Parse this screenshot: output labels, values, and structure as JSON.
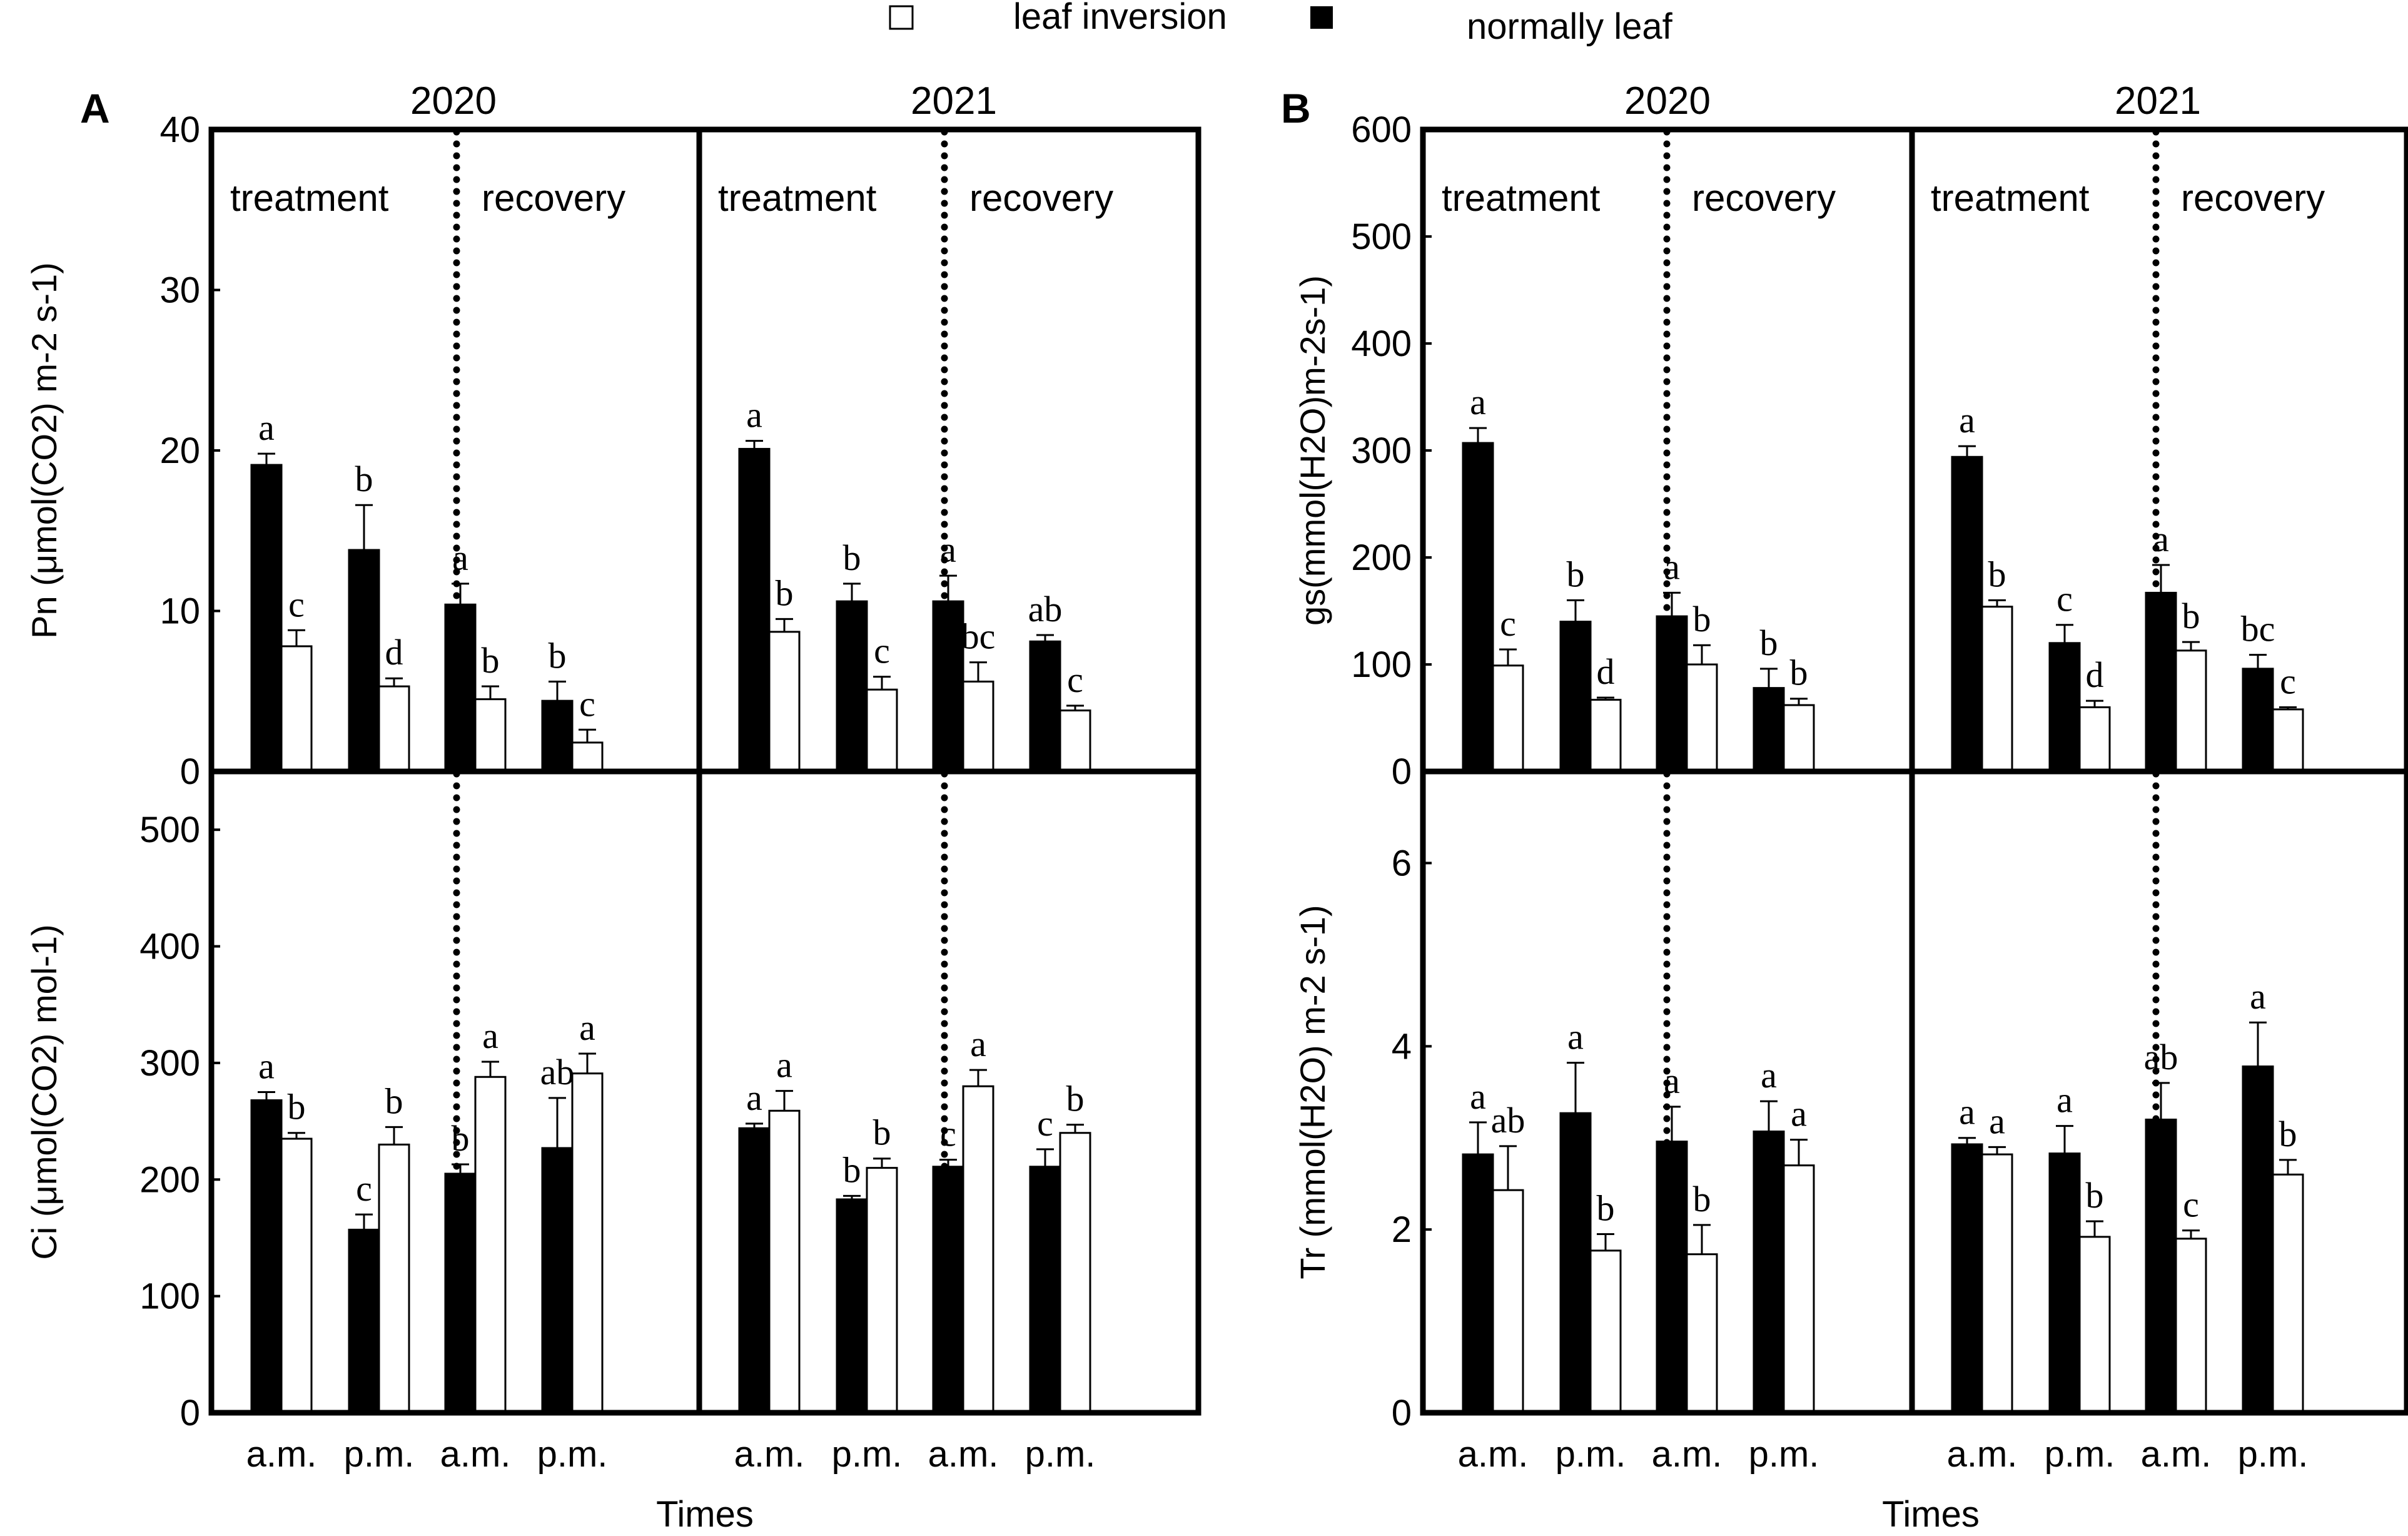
{
  "legend": {
    "open_label": "leaf inversion",
    "filled_label": "normally leaf"
  },
  "panels": [
    {
      "letter": "A",
      "years": [
        "2020",
        "2021"
      ],
      "x_title": "Times"
    },
    {
      "letter": "B",
      "years": [
        "2020",
        "2021"
      ],
      "x_title": "Times"
    }
  ],
  "chart_data": [
    {
      "type": "bar",
      "panel": "A",
      "row": "top",
      "ylabel": "Pn (μmol(CO2) m-2 s-1)",
      "ylim": [
        0,
        40
      ],
      "yticks": [
        0,
        10,
        20,
        30,
        40
      ],
      "years": [
        "2020",
        "2021"
      ],
      "periods": [
        "treatment",
        "recovery"
      ],
      "categories": [
        "a.m.",
        "p.m.",
        "a.m.",
        "p.m."
      ],
      "series": [
        {
          "name": "normally leaf",
          "values": [
            [
              19.1,
              13.8,
              10.4,
              4.4
            ],
            [
              20.1,
              10.6,
              10.6,
              8.1
            ]
          ],
          "errors": [
            [
              0.7,
              2.8,
              1.3,
              1.2
            ],
            [
              0.5,
              1.1,
              1.6,
              0.4
            ]
          ],
          "letters": [
            [
              "a",
              "b",
              "a",
              "b"
            ],
            [
              "a",
              "b",
              "a",
              "ab"
            ]
          ]
        },
        {
          "name": "leaf inversion",
          "values": [
            [
              7.8,
              5.3,
              4.5,
              1.8
            ],
            [
              8.7,
              5.1,
              5.6,
              3.8
            ]
          ],
          "errors": [
            [
              1.0,
              0.5,
              0.8,
              0.8
            ],
            [
              0.8,
              0.8,
              1.2,
              0.3
            ]
          ],
          "letters": [
            [
              "c",
              "d",
              "b",
              "c"
            ],
            [
              "b",
              "c",
              "bc",
              "c"
            ]
          ]
        }
      ]
    },
    {
      "type": "bar",
      "panel": "A",
      "row": "bottom",
      "ylabel": "Ci (μmol(CO2) mol-1)",
      "ylim": [
        0,
        550
      ],
      "yticks": [
        0,
        100,
        200,
        300,
        400,
        500
      ],
      "years": [
        "2020",
        "2021"
      ],
      "periods": [
        "treatment",
        "recovery"
      ],
      "categories": [
        "a.m.",
        "p.m.",
        "a.m.",
        "p.m."
      ],
      "series": [
        {
          "name": "normally leaf",
          "values": [
            [
              268,
              157,
              205,
              227
            ],
            [
              244,
              183,
              211,
              211
            ]
          ],
          "errors": [
            [
              7,
              13,
              8,
              43
            ],
            [
              4,
              3,
              6,
              15
            ]
          ],
          "letters": [
            [
              "a",
              "c",
              "b",
              "ab"
            ],
            [
              "a",
              "b",
              "c",
              "c"
            ]
          ]
        },
        {
          "name": "leaf inversion",
          "values": [
            [
              235,
              230,
              288,
              291
            ],
            [
              259,
              210,
              280,
              240
            ]
          ],
          "errors": [
            [
              5,
              15,
              13,
              17
            ],
            [
              17,
              8,
              14,
              7
            ]
          ],
          "letters": [
            [
              "b",
              "b",
              "a",
              "a"
            ],
            [
              "a",
              "b",
              "a",
              "b"
            ]
          ]
        }
      ]
    },
    {
      "type": "bar",
      "panel": "B",
      "row": "top",
      "ylabel": "gs(mmol(H2O)m-2s-1)",
      "ylim": [
        0,
        600
      ],
      "yticks": [
        0,
        100,
        200,
        300,
        400,
        500,
        600
      ],
      "years": [
        "2020",
        "2021"
      ],
      "periods": [
        "treatment",
        "recovery"
      ],
      "categories": [
        "a.m.",
        "p.m.",
        "a.m.",
        "p.m."
      ],
      "series": [
        {
          "name": "normally leaf",
          "values": [
            [
              307,
              140,
              145,
              78
            ],
            [
              294,
              120,
              167,
              96
            ]
          ],
          "errors": [
            [
              14,
              20,
              22,
              18
            ],
            [
              10,
              17,
              26,
              13
            ]
          ],
          "letters": [
            [
              "a",
              "b",
              "a",
              "b"
            ],
            [
              "a",
              "c",
              "a",
              "bc"
            ]
          ]
        },
        {
          "name": "leaf inversion",
          "values": [
            [
              99,
              67,
              100,
              62
            ],
            [
              154,
              60,
              113,
              58
            ]
          ],
          "errors": [
            [
              15,
              2,
              18,
              6
            ],
            [
              6,
              6,
              8,
              2
            ]
          ],
          "letters": [
            [
              "c",
              "d",
              "b",
              "b"
            ],
            [
              "b",
              "d",
              "b",
              "c"
            ]
          ]
        }
      ]
    },
    {
      "type": "bar",
      "panel": "B",
      "row": "bottom",
      "ylabel": "Tr (mmol(H2O) m-2 s-1)",
      "ylim": [
        0,
        7
      ],
      "yticks": [
        0,
        2,
        4,
        6
      ],
      "years": [
        "2020",
        "2021"
      ],
      "periods": [
        "treatment",
        "recovery"
      ],
      "categories": [
        "a.m.",
        "p.m.",
        "a.m.",
        "p.m."
      ],
      "series": [
        {
          "name": "normally leaf",
          "values": [
            [
              2.82,
              3.27,
              2.96,
              3.07
            ],
            [
              2.93,
              2.83,
              3.2,
              3.78
            ]
          ],
          "errors": [
            [
              0.35,
              0.55,
              0.38,
              0.33
            ],
            [
              0.07,
              0.3,
              0.4,
              0.48
            ]
          ],
          "letters": [
            [
              "a",
              "a",
              "a",
              "a"
            ],
            [
              "a",
              "a",
              "ab",
              "a"
            ]
          ]
        },
        {
          "name": "leaf inversion",
          "values": [
            [
              2.43,
              1.77,
              1.73,
              2.7
            ],
            [
              2.82,
              1.92,
              1.9,
              2.6
            ]
          ],
          "errors": [
            [
              0.48,
              0.18,
              0.32,
              0.28
            ],
            [
              0.08,
              0.17,
              0.09,
              0.16
            ]
          ],
          "letters": [
            [
              "ab",
              "b",
              "b",
              "a"
            ],
            [
              "a",
              "b",
              "c",
              "b"
            ]
          ]
        }
      ]
    }
  ]
}
